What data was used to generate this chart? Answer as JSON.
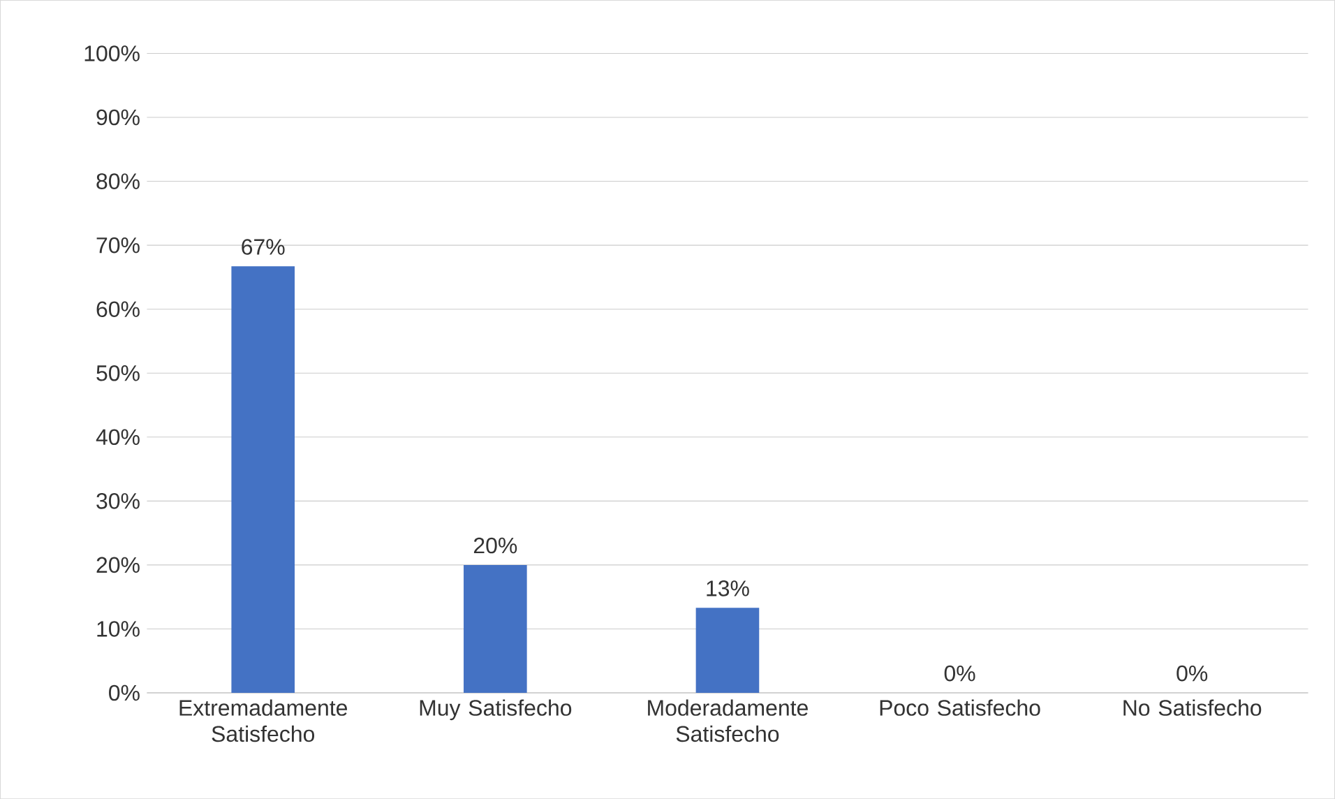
{
  "chart_data": {
    "type": "bar",
    "categories": [
      "Extremadamente Satisfecho",
      "Muy Satisfecho",
      "Moderadamente Satisfecho",
      "Poco Satisfecho",
      "No Satisfecho"
    ],
    "values": [
      66.7,
      20,
      13.3,
      0,
      0
    ],
    "value_labels": [
      "67%",
      "20%",
      "13%",
      "0%",
      "0%"
    ],
    "color": "#4472c4",
    "ylim": [
      0,
      100
    ],
    "yticks": [
      {
        "value": 0,
        "label": "0%"
      },
      {
        "value": 10,
        "label": "10%"
      },
      {
        "value": 20,
        "label": "20%"
      },
      {
        "value": 30,
        "label": "30%"
      },
      {
        "value": 40,
        "label": "40%"
      },
      {
        "value": 50,
        "label": "50%"
      },
      {
        "value": 60,
        "label": "60%"
      },
      {
        "value": 70,
        "label": "70%"
      },
      {
        "value": 80,
        "label": "80%"
      },
      {
        "value": 90,
        "label": "90%"
      },
      {
        "value": 100,
        "label": "100%"
      }
    ],
    "grid": "y"
  }
}
